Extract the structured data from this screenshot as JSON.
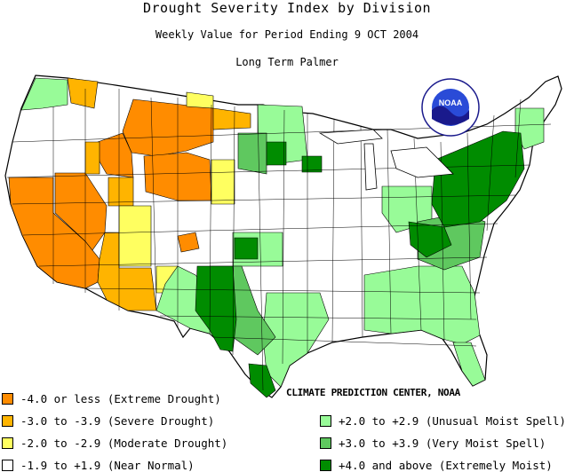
{
  "header": {
    "title": "Drought Severity Index by Division",
    "subtitle": "Weekly Value for Period Ending  9 OCT 2004",
    "index_name": "Long Term Palmer"
  },
  "logo": {
    "text": "NOAA"
  },
  "credit": "CLIMATE PREDICTION CENTER, NOAA",
  "colors": {
    "extreme_drought": "#ff8c00",
    "severe_drought": "#ffb400",
    "moderate_drought": "#ffff60",
    "near_normal": "#ffffff",
    "unusual_moist": "#98fb98",
    "very_moist": "#5fc85f",
    "extremely_moist": "#008c00",
    "outline": "#000000"
  },
  "legend": {
    "left": [
      {
        "label": "-4.0 or less (Extreme Drought)",
        "color": "#ff8c00"
      },
      {
        "label": "-3.0 to -3.9 (Severe Drought)",
        "color": "#ffb400"
      },
      {
        "label": "-2.0 to -2.9 (Moderate Drought)",
        "color": "#ffff60"
      },
      {
        "label": "-1.9 to +1.9 (Near Normal)",
        "color": "#ffffff"
      }
    ],
    "right": [
      {
        "label": "+2.0 to +2.9 (Unusual Moist Spell)",
        "color": "#98fb98"
      },
      {
        "label": "+3.0 to +3.9 (Very Moist Spell)",
        "color": "#5fc85f"
      },
      {
        "label": "+4.0 and above (Extremely Moist)",
        "color": "#008c00"
      }
    ]
  }
}
